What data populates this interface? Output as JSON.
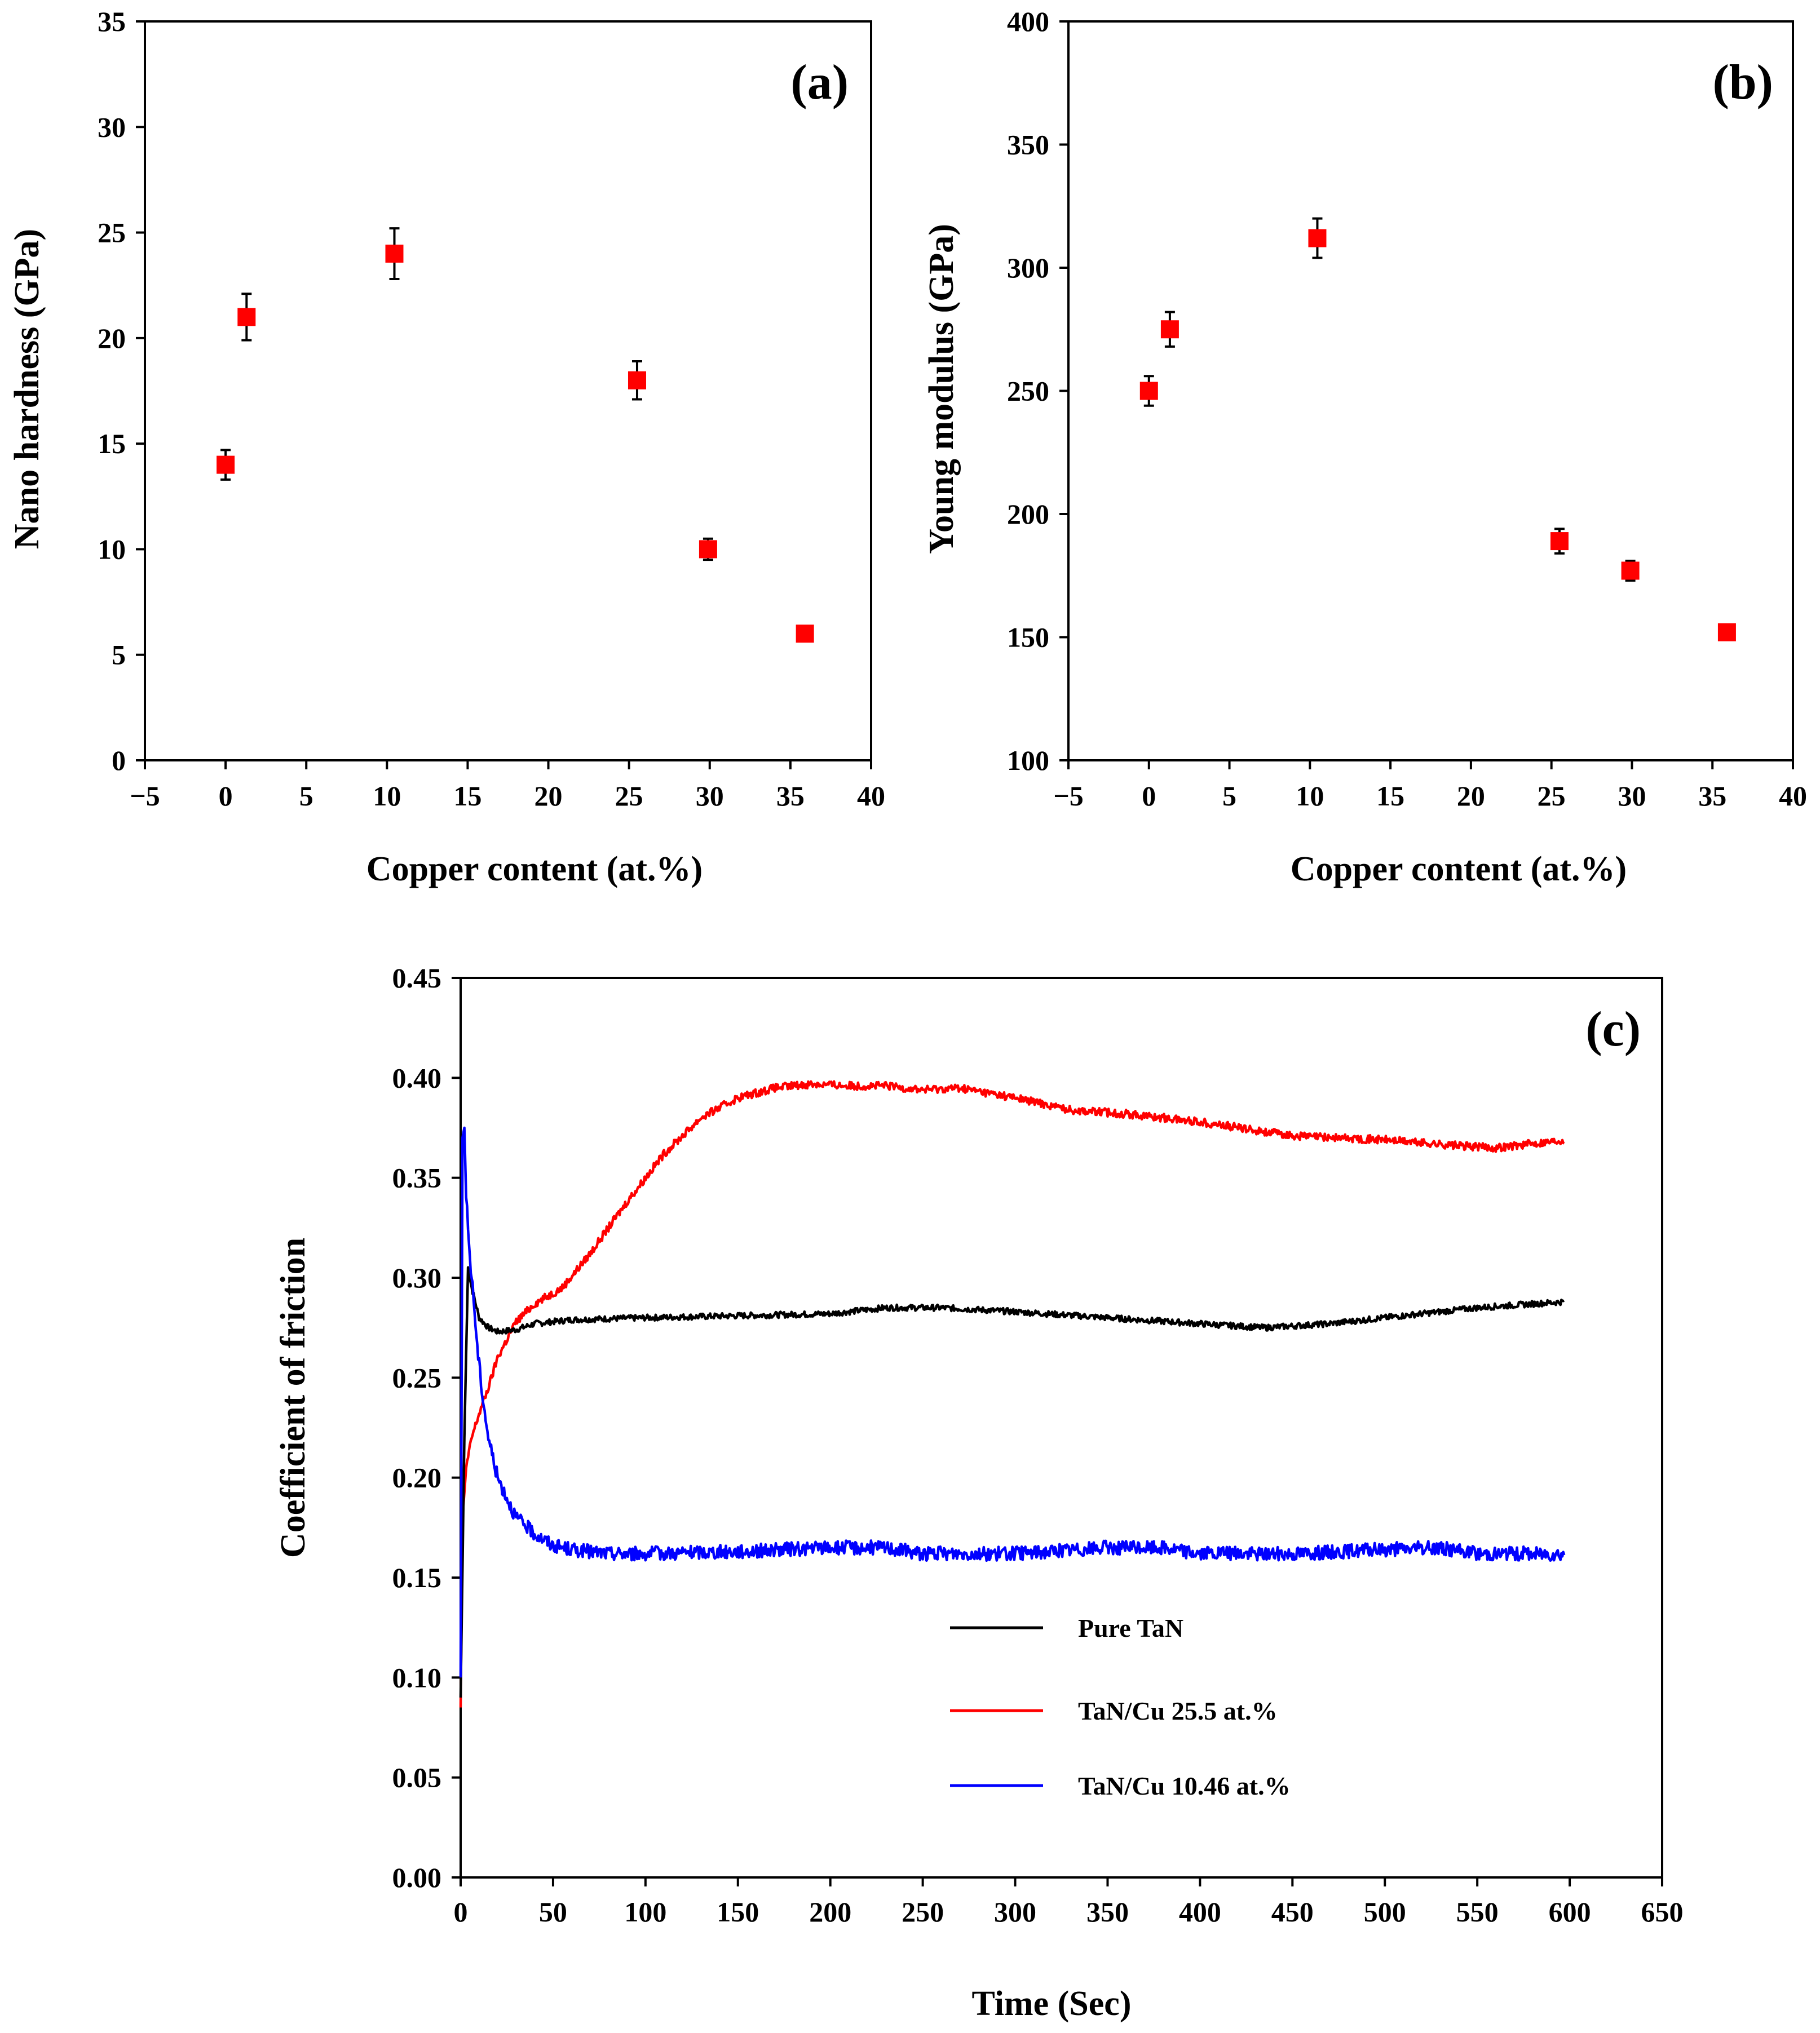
{
  "chart_data": [
    {
      "id": "a",
      "type": "scatter",
      "panel_label": "(a)",
      "xlabel": "Copper content (at.%)",
      "ylabel": "Nano hardness (GPa)",
      "xlim": [
        -5,
        40
      ],
      "ylim": [
        0,
        35
      ],
      "xticks": [
        -5,
        0,
        5,
        10,
        15,
        20,
        25,
        30,
        35,
        40
      ],
      "xtick_labels": [
        "−5",
        "0",
        "5",
        "10",
        "15",
        "20",
        "25",
        "30",
        "35",
        "40"
      ],
      "yticks": [
        0,
        5,
        10,
        15,
        20,
        25,
        30,
        35
      ],
      "ytick_labels": [
        "0",
        "5",
        "10",
        "15",
        "20",
        "25",
        "30",
        "35"
      ],
      "marker_color": "#ff0000",
      "points": [
        {
          "x": 0,
          "y": 14.0,
          "err": 0.7
        },
        {
          "x": 1.3,
          "y": 21.0,
          "err": 1.1
        },
        {
          "x": 10.46,
          "y": 24.0,
          "err": 1.2
        },
        {
          "x": 25.5,
          "y": 18.0,
          "err": 0.9
        },
        {
          "x": 29.9,
          "y": 10.0,
          "err": 0.5
        },
        {
          "x": 35.9,
          "y": 6.0,
          "err": 0.0
        }
      ]
    },
    {
      "id": "b",
      "type": "scatter",
      "panel_label": "(b)",
      "xlabel": "Copper content (at.%)",
      "ylabel": "Young modulus  (GPa)",
      "xlim": [
        -5,
        40
      ],
      "ylim": [
        100,
        400
      ],
      "xticks": [
        -5,
        0,
        5,
        10,
        15,
        20,
        25,
        30,
        35,
        40
      ],
      "xtick_labels": [
        "−5",
        "0",
        "5",
        "10",
        "15",
        "20",
        "25",
        "30",
        "35",
        "40"
      ],
      "yticks": [
        100,
        150,
        200,
        250,
        300,
        350,
        400
      ],
      "ytick_labels": [
        "100",
        "150",
        "200",
        "250",
        "300",
        "350",
        "400"
      ],
      "marker_color": "#ff0000",
      "points": [
        {
          "x": 0,
          "y": 250,
          "err": 6
        },
        {
          "x": 1.3,
          "y": 275,
          "err": 7
        },
        {
          "x": 10.46,
          "y": 312,
          "err": 8
        },
        {
          "x": 25.5,
          "y": 189,
          "err": 5
        },
        {
          "x": 29.9,
          "y": 177,
          "err": 4
        },
        {
          "x": 35.9,
          "y": 152,
          "err": 3
        }
      ]
    },
    {
      "id": "c",
      "type": "line",
      "panel_label": "(c)",
      "xlabel": "Time (Sec)",
      "ylabel": "Coefficient of friction",
      "xlim": [
        0,
        650
      ],
      "ylim": [
        0,
        0.45
      ],
      "xticks": [
        0,
        50,
        100,
        150,
        200,
        250,
        300,
        350,
        400,
        450,
        500,
        550,
        600,
        650
      ],
      "xtick_labels": [
        "0",
        "50",
        "100",
        "150",
        "200",
        "250",
        "300",
        "350",
        "400",
        "450",
        "500",
        "550",
        "600",
        "650"
      ],
      "yticks": [
        0,
        0.05,
        0.1,
        0.15,
        0.2,
        0.25,
        0.3,
        0.35,
        0.4,
        0.45
      ],
      "ytick_labels": [
        "0.00",
        "0.05",
        "0.10",
        "0.15",
        "0.20",
        "0.25",
        "0.30",
        "0.35",
        "0.40",
        "0.45"
      ],
      "legend_position": "lower-right",
      "series": [
        {
          "name": "Pure TaN",
          "color": "#000000",
          "noise": 0.0015,
          "x": [
            0,
            2,
            4,
            6,
            10,
            15,
            20,
            30,
            40,
            60,
            100,
            150,
            200,
            230,
            260,
            300,
            350,
            400,
            435,
            470,
            500,
            550,
            597
          ],
          "y": [
            0.09,
            0.22,
            0.305,
            0.295,
            0.28,
            0.275,
            0.273,
            0.274,
            0.277,
            0.279,
            0.28,
            0.281,
            0.282,
            0.285,
            0.285,
            0.283,
            0.28,
            0.277,
            0.275,
            0.277,
            0.28,
            0.285,
            0.288
          ]
        },
        {
          "name": "TaN/Cu 25.5 at.%",
          "color": "#ff0000",
          "noise": 0.002,
          "x": [
            0,
            1,
            3,
            6,
            10,
            15,
            20,
            30,
            40,
            55,
            70,
            90,
            110,
            130,
            150,
            170,
            190,
            210,
            230,
            250,
            270,
            300,
            330,
            360,
            400,
            450,
            500,
            540,
            560,
            597
          ],
          "y": [
            0.085,
            0.18,
            0.205,
            0.22,
            0.232,
            0.245,
            0.26,
            0.278,
            0.287,
            0.295,
            0.312,
            0.338,
            0.362,
            0.38,
            0.39,
            0.395,
            0.397,
            0.396,
            0.396,
            0.394,
            0.395,
            0.39,
            0.384,
            0.382,
            0.378,
            0.371,
            0.369,
            0.366,
            0.365,
            0.369
          ]
        },
        {
          "name": "TaN/Cu 10.46 at.%",
          "color": "#0000ff",
          "noise": 0.0035,
          "x": [
            0,
            1,
            2,
            3,
            5,
            7,
            9,
            12,
            15,
            20,
            25,
            30,
            40,
            50,
            60,
            80,
            100,
            150,
            200,
            230,
            250,
            300,
            350,
            380,
            400,
            450,
            500,
            530,
            550,
            597
          ],
          "y": [
            0.1,
            0.37,
            0.375,
            0.34,
            0.31,
            0.29,
            0.265,
            0.24,
            0.22,
            0.2,
            0.19,
            0.18,
            0.172,
            0.166,
            0.164,
            0.162,
            0.162,
            0.163,
            0.165,
            0.165,
            0.162,
            0.162,
            0.165,
            0.165,
            0.162,
            0.162,
            0.164,
            0.165,
            0.162,
            0.162
          ]
        }
      ]
    }
  ]
}
